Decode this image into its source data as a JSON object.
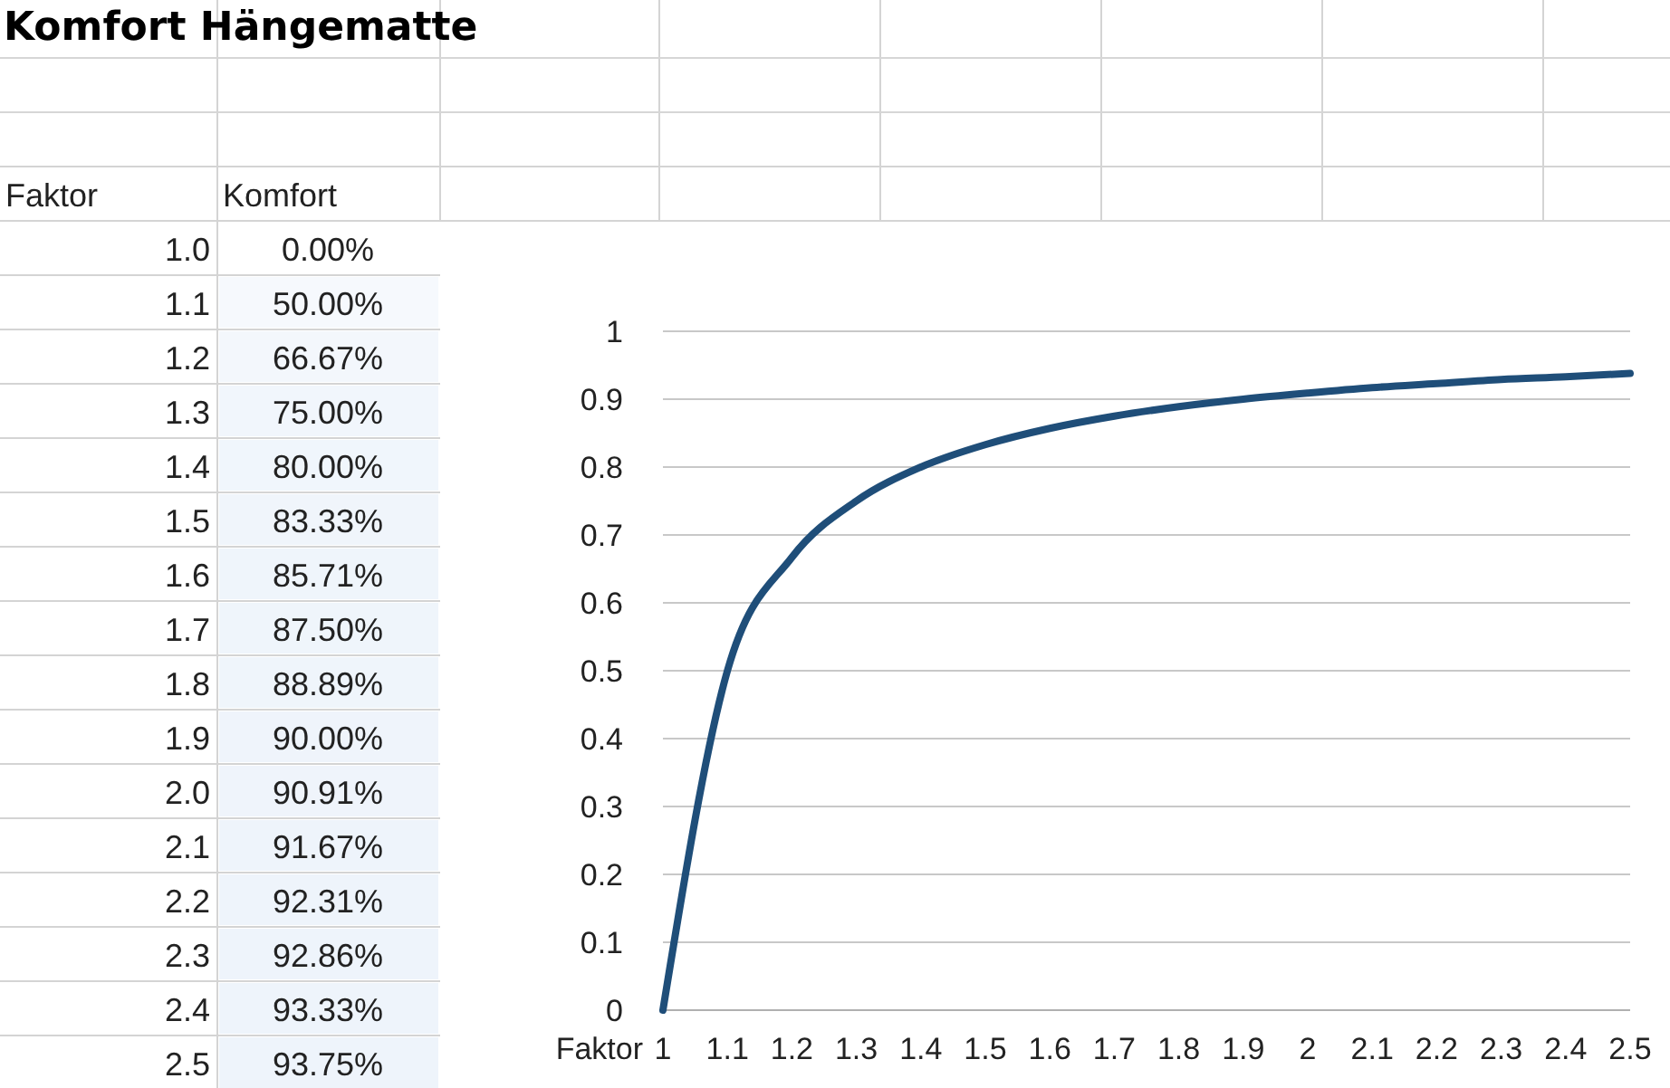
{
  "chart_data": [
    {
      "type": "heatmap",
      "title": "Komfort Hängematte",
      "ylabel": "Faktor",
      "categories": [
        "Komfort"
      ],
      "y_categories": [
        "1.0",
        "1.1",
        "1.2",
        "1.3",
        "1.4",
        "1.5",
        "1.6",
        "1.7",
        "1.8",
        "1.9",
        "2.0",
        "2.1",
        "2.2",
        "2.3",
        "2.4",
        "2.5"
      ],
      "cells": [
        [
          0
        ],
        [
          50
        ],
        [
          66.67
        ],
        [
          75
        ],
        [
          80
        ],
        [
          83.33
        ],
        [
          85.71
        ],
        [
          87.5
        ],
        [
          88.89
        ],
        [
          90
        ],
        [
          90.91
        ],
        [
          91.67
        ],
        [
          92.31
        ],
        [
          92.86
        ],
        [
          93.33
        ],
        [
          93.75
        ]
      ],
      "cell_labels": [
        [
          "0.00%"
        ],
        [
          "50.00%"
        ],
        [
          "66.67%"
        ],
        [
          "75.00%"
        ],
        [
          "80.00%"
        ],
        [
          "83.33%"
        ],
        [
          "85.71%"
        ],
        [
          "87.50%"
        ],
        [
          "88.89%"
        ],
        [
          "90.00%"
        ],
        [
          "90.91%"
        ],
        [
          "91.67%"
        ],
        [
          "92.31%"
        ],
        [
          "92.86%"
        ],
        [
          "93.33%"
        ],
        [
          "93.75%"
        ]
      ]
    },
    {
      "type": "line",
      "xlabel": "Faktor",
      "x": [
        1.0,
        1.1,
        1.2,
        1.3,
        1.4,
        1.5,
        1.6,
        1.7,
        1.8,
        1.9,
        2.0,
        2.1,
        2.2,
        2.3,
        2.4,
        2.5
      ],
      "series": [
        {
          "color": "#1f4e79",
          "values": [
            0,
            0.5,
            0.667,
            0.75,
            0.8,
            0.833,
            0.857,
            0.875,
            0.889,
            0.9,
            0.909,
            0.917,
            0.923,
            0.929,
            0.933,
            0.938
          ]
        }
      ],
      "xlim": [
        1,
        2.5
      ],
      "xticks": [
        1,
        1.1,
        1.2,
        1.3,
        1.4,
        1.5,
        1.6,
        1.7,
        1.8,
        1.9,
        2,
        2.1,
        2.2,
        2.3,
        2.4,
        2.5
      ],
      "ylim": [
        0,
        1
      ],
      "yticks": [
        0,
        0.1,
        0.2,
        0.3,
        0.4,
        0.5,
        0.6,
        0.7,
        0.8,
        0.9,
        1
      ],
      "grid": "y",
      "marker": "none",
      "line_style": "solid"
    }
  ]
}
